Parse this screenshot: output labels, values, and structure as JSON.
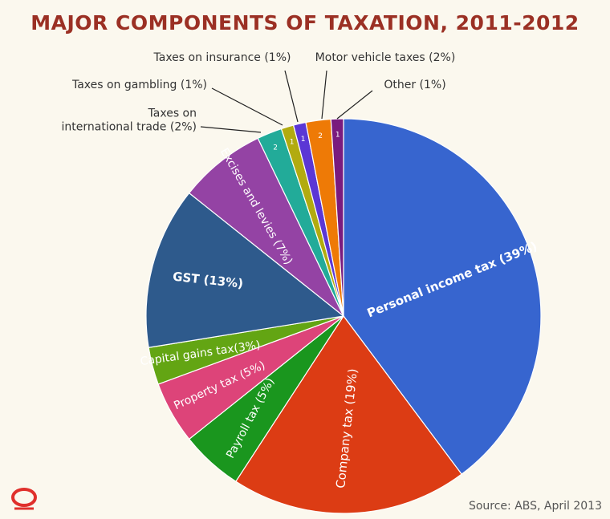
{
  "chart_data": {
    "type": "pie",
    "title": "MAJOR COMPONENTS OF TAXATION, 2011-2012",
    "source": "Source: ABS, April 2013",
    "slices": [
      {
        "name": "Personal income tax",
        "value": 39,
        "label": "Personal income tax (39%)",
        "color": "#3765cf"
      },
      {
        "name": "Company tax",
        "value": 19,
        "label": "Company tax (19%)",
        "color": "#dc3c14"
      },
      {
        "name": "Payroll tax",
        "value": 5,
        "label": "Payroll tax (5%)",
        "color": "#1a961e"
      },
      {
        "name": "Property tax",
        "value": 5,
        "label": "Property tax (5%)",
        "color": "#dd4479"
      },
      {
        "name": "Capital gains tax",
        "value": 3,
        "label": "Capital gains tax(3%)",
        "color": "#63a513"
      },
      {
        "name": "GST",
        "value": 13,
        "label": "GST (13%)",
        "color": "#2e5a8c"
      },
      {
        "name": "Excises and levies",
        "value": 7,
        "label": "Excises and levies (7%)",
        "color": "#9443a4"
      },
      {
        "name": "Taxes on international trade",
        "value": 2,
        "label": "2",
        "callout": [
          "Taxes on",
          "international trade (2%)"
        ],
        "color": "#22ab99"
      },
      {
        "name": "Taxes on gambling",
        "value": 1,
        "label": "1",
        "callout": [
          "Taxes on gambling (1%)"
        ],
        "color": "#b2ab0f"
      },
      {
        "name": "Taxes on insurance",
        "value": 1,
        "label": "1",
        "callout": [
          "Taxes on insurance (1%)"
        ],
        "color": "#5b37d5"
      },
      {
        "name": "Motor vehicle taxes",
        "value": 2,
        "label": "2",
        "callout": [
          "Motor vehicle taxes (2%)"
        ],
        "color": "#ee7a06"
      },
      {
        "name": "Other",
        "value": 1,
        "label": "1",
        "callout": [
          "Other (1%)"
        ],
        "color": "#7a1b7e"
      }
    ]
  },
  "logo_color": "#e0302c"
}
